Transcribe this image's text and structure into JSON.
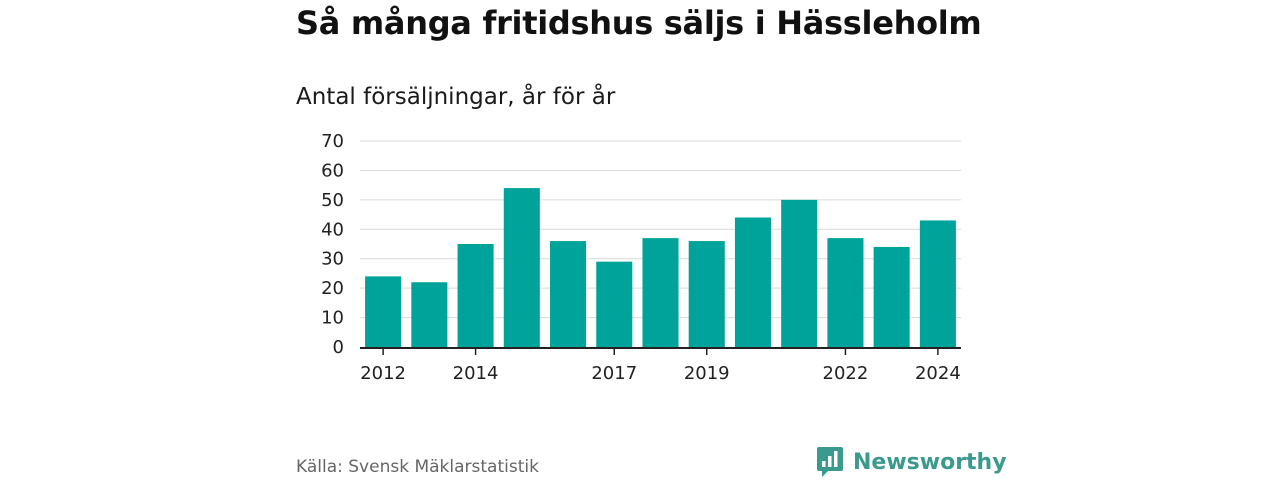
{
  "title": "Så många fritidshus säljs i Hässleholm",
  "subtitle": "Antal försäljningar, år för år",
  "source": "Källa: Svensk Mäklarstatistik",
  "brand": {
    "name": "Newsworthy",
    "icon": "bar-chart-speech-bubble-icon",
    "color": "#3a9a8e"
  },
  "chart_data": {
    "type": "bar",
    "categories": [
      "2012",
      "2013",
      "2014",
      "2015",
      "2016",
      "2017",
      "2018",
      "2019",
      "2020",
      "2021",
      "2022",
      "2023",
      "2024"
    ],
    "values": [
      24,
      22,
      35,
      54,
      36,
      29,
      37,
      36,
      44,
      50,
      37,
      34,
      43
    ],
    "x_tick_labels": [
      "2012",
      "2014",
      "2017",
      "2019",
      "2022",
      "2024"
    ],
    "ylim": [
      0,
      70
    ],
    "y_ticks": [
      "0",
      "10",
      "20",
      "30",
      "40",
      "50",
      "60",
      "70"
    ],
    "grid": true,
    "bar_color": "#00a399",
    "title": "Så många fritidshus säljs i Hässleholm",
    "subtitle": "Antal försäljningar, år för år"
  }
}
